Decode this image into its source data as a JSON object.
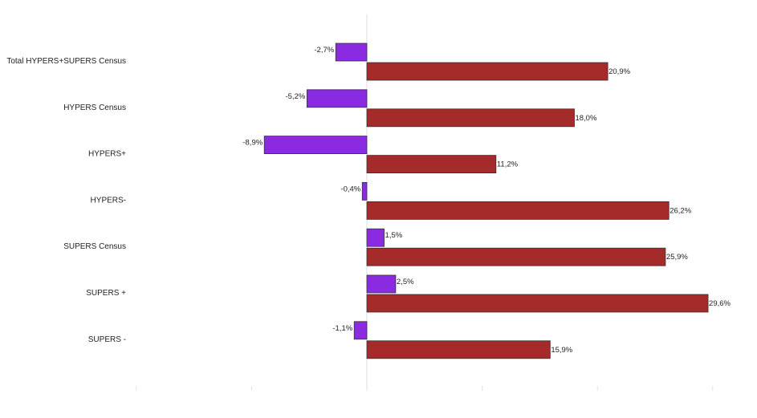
{
  "chart_data": {
    "type": "bar",
    "orientation": "horizontal",
    "categories": [
      "Total HYPERS+SUPERS Census",
      "HYPERS Census",
      "HYPERS+",
      "HYPERS-",
      "SUPERS Census",
      "SUPERS +",
      "SUPERS -"
    ],
    "series": [
      {
        "color": "#8a2be2",
        "values": [
          -2.7,
          -5.2,
          -8.9,
          -0.4,
          1.5,
          2.5,
          -1.1
        ],
        "labels": [
          "-2,7%",
          "-5,2%",
          "-8,9%",
          "-0,4%",
          "1,5%",
          "2,5%",
          "-1,1%"
        ]
      },
      {
        "color": "#a52a2a",
        "values": [
          20.9,
          18.0,
          11.2,
          26.2,
          25.9,
          29.6,
          15.9
        ],
        "labels": [
          "20,9%",
          "18,0%",
          "11,2%",
          "26,2%",
          "25,9%",
          "29,6%",
          "15,9%"
        ]
      }
    ],
    "xlim": [
      -20,
      30
    ],
    "grid": false,
    "legend": "none"
  }
}
